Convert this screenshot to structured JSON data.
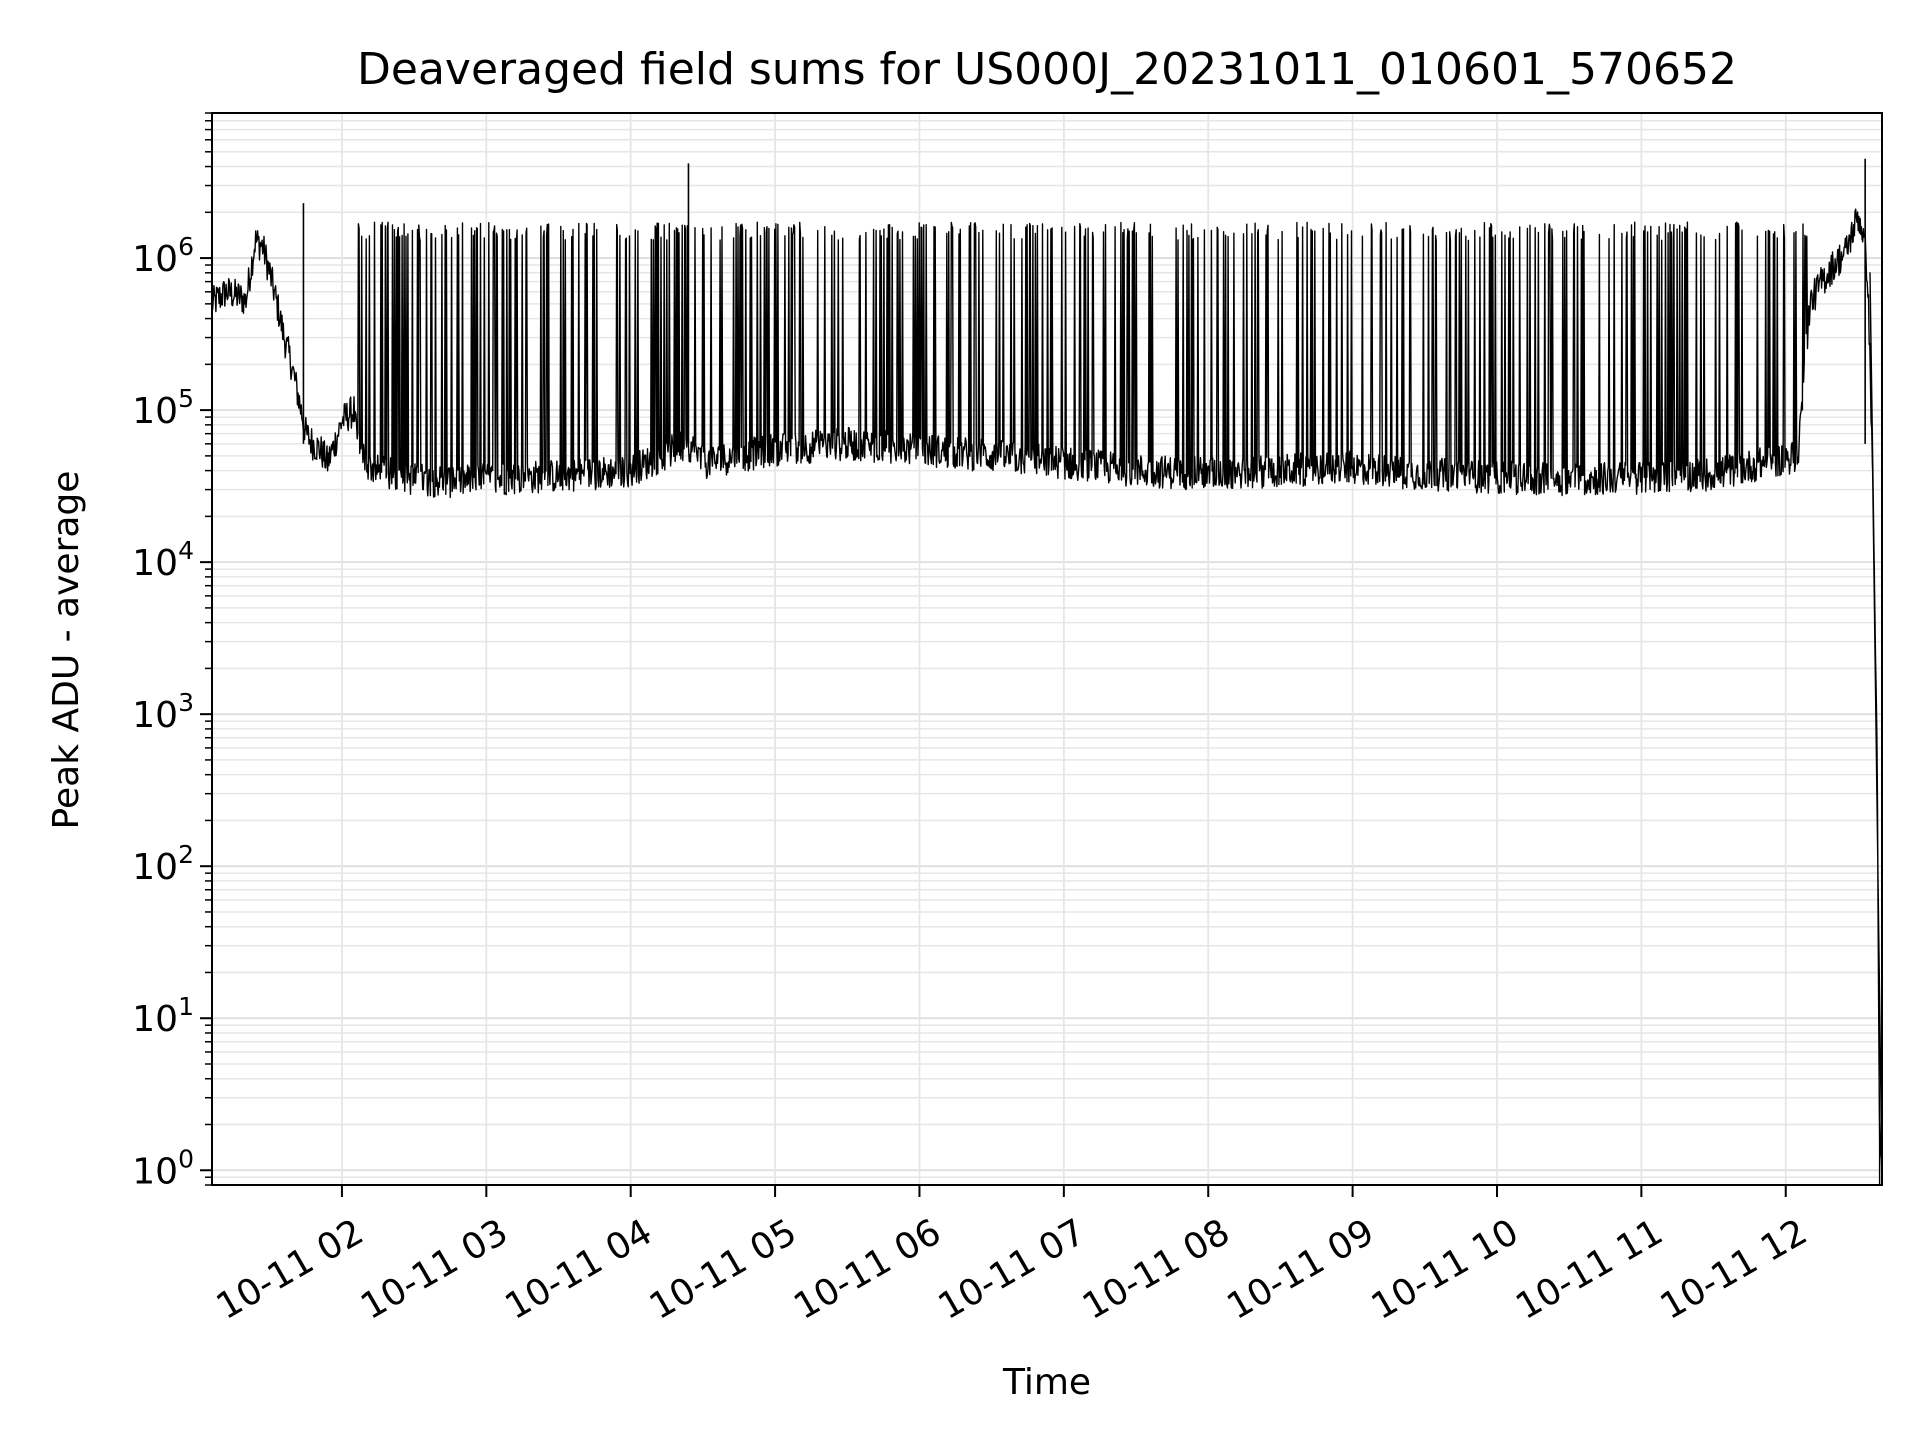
{
  "chart_data": {
    "type": "line",
    "title": "Deaveraged field sums for US000J_20231011_010601_570652",
    "xlabel": "Time",
    "ylabel": "Peak ADU - average",
    "yscale": "log",
    "ylim": [
      0.8,
      9000000
    ],
    "xlim": [
      "2023-10-11 01:06",
      "2023-10-11 12:40"
    ],
    "grid": true,
    "legend": "none",
    "line_color": "#000000",
    "x_ticks": [
      "10-11 02",
      "10-11 03",
      "10-11 04",
      "10-11 05",
      "10-11 06",
      "10-11 07",
      "10-11 08",
      "10-11 09",
      "10-11 10",
      "10-11 11",
      "10-11 12"
    ],
    "y_ticks": [
      {
        "value": 1,
        "base": "10",
        "exp": "0"
      },
      {
        "value": 10,
        "base": "10",
        "exp": "1"
      },
      {
        "value": 100,
        "base": "10",
        "exp": "2"
      },
      {
        "value": 1000,
        "base": "10",
        "exp": "3"
      },
      {
        "value": 10000,
        "base": "10",
        "exp": "4"
      },
      {
        "value": 100000,
        "base": "10",
        "exp": "5"
      },
      {
        "value": 1000000,
        "base": "10",
        "exp": "6"
      }
    ],
    "series": [
      {
        "x": [
          "2023-10-11 01:06",
          "2023-10-11 01:12",
          "2023-10-11 01:18",
          "2023-10-11 01:20",
          "2023-10-11 01:24",
          "2023-10-11 01:27",
          "2023-10-11 01:30",
          "2023-10-11 01:33",
          "2023-10-11 01:36",
          "2023-10-11 01:39",
          "2023-10-11 01:42",
          "2023-10-11 01:45",
          "2023-10-11 01:48",
          "2023-10-11 01:51",
          "2023-10-11 01:54",
          "2023-10-11 01:57",
          "2023-10-11 02:00",
          "2023-10-11 02:05",
          "2023-10-11 02:07",
          "2023-10-11 02:10",
          "2023-10-11 02:14",
          "2023-10-11 02:20",
          "2023-10-11 02:30",
          "2023-10-11 02:45",
          "2023-10-11 03:00",
          "2023-10-11 03:30",
          "2023-10-11 04:00",
          "2023-10-11 04:24",
          "2023-10-11 04:30",
          "2023-10-11 05:00",
          "2023-10-11 05:30",
          "2023-10-11 06:00",
          "2023-10-11 06:30",
          "2023-10-11 07:00",
          "2023-10-11 07:30",
          "2023-10-11 08:00",
          "2023-10-11 08:30",
          "2023-10-11 09:00",
          "2023-10-11 09:30",
          "2023-10-11 10:00",
          "2023-10-11 10:30",
          "2023-10-11 11:00",
          "2023-10-11 11:30",
          "2023-10-11 12:05",
          "2023-10-11 12:10",
          "2023-10-11 12:15",
          "2023-10-11 12:20",
          "2023-10-11 12:25",
          "2023-10-11 12:30",
          "2023-10-11 12:32",
          "2023-10-11 12:34",
          "2023-10-11 12:36",
          "2023-10-11 12:38",
          "2023-10-11 12:39",
          "2023-10-11 12:40"
        ],
        "y": [
          500000,
          600000,
          550000,
          520000,
          1300000,
          1200000,
          800000,
          500000,
          300000,
          200000,
          120000,
          70000,
          60000,
          55000,
          45000,
          60000,
          85000,
          100000,
          60000,
          45000,
          40000,
          38000,
          35000,
          34000,
          35000,
          37000,
          40000,
          60000,
          45000,
          55000,
          60000,
          55000,
          50000,
          45000,
          40000,
          38000,
          40000,
          42000,
          38000,
          36000,
          35000,
          36000,
          38000,
          50000,
          500000,
          700000,
          900000,
          1100000,
          1900000,
          1500000,
          800000,
          50000,
          500,
          1.5,
          0.8
        ]
      }
    ],
    "spikes": {
      "baseline_ranges": [
        [
          "2023-10-11 02:05",
          "2023-10-11 12:10"
        ]
      ],
      "peak_level": 1500000,
      "notable_peaks": [
        {
          "x": "2023-10-11 01:44",
          "y": 2300000
        },
        {
          "x": "2023-10-11 04:24",
          "y": 4200000
        },
        {
          "x": "2023-10-11 12:33",
          "y": 4500000
        }
      ],
      "minima_level": 30000
    }
  }
}
